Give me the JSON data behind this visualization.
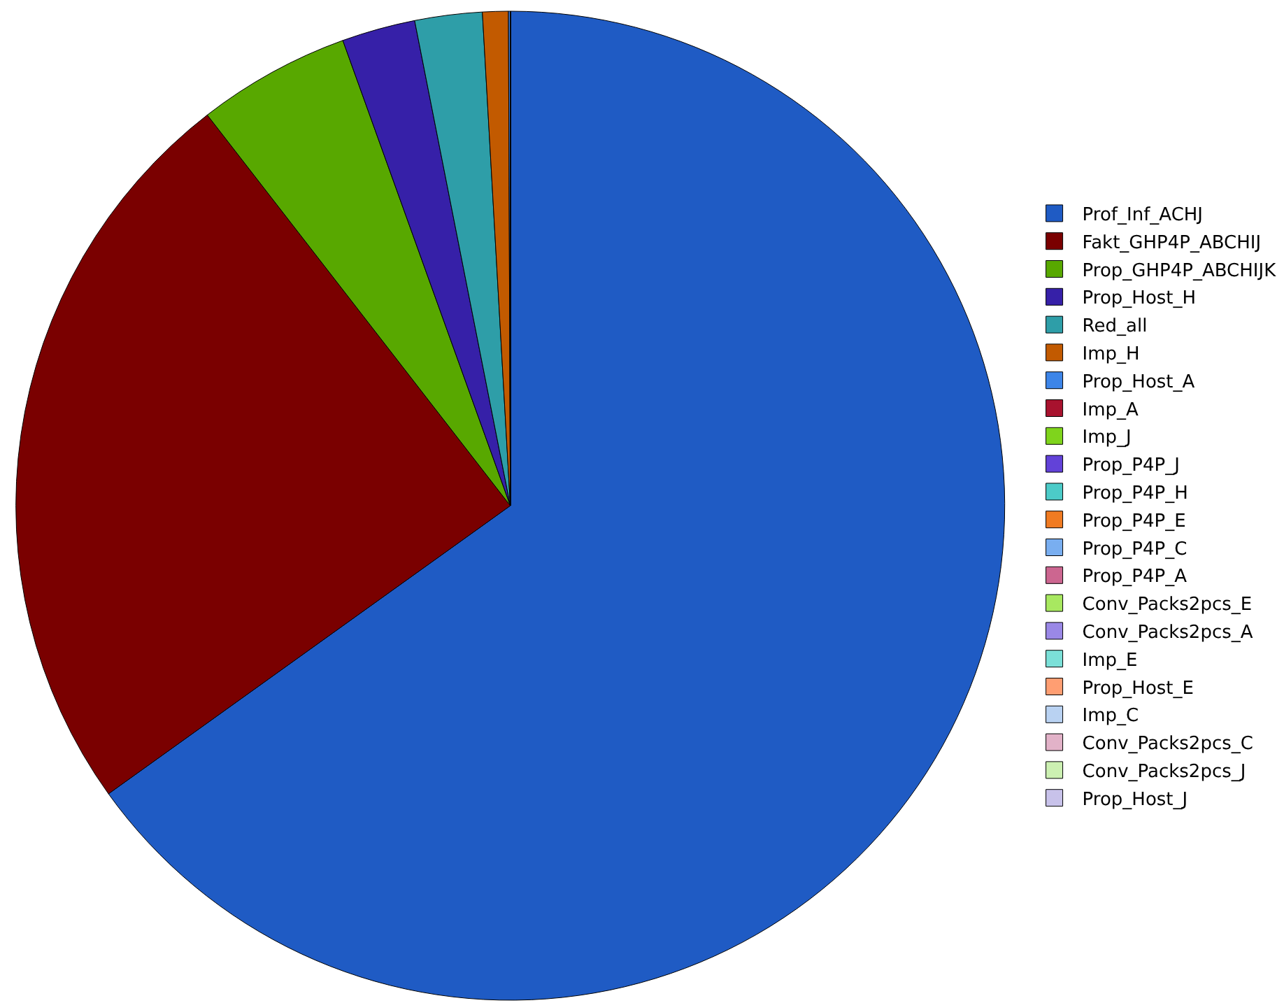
{
  "chart_data": {
    "type": "pie",
    "categories": [
      "Prof_Inf_ACHJ",
      "Fakt_GHP4P_ABCHIJ",
      "Prop_GHP4P_ABCHIJK",
      "Prop_Host_H",
      "Red_all",
      "Imp_H",
      "Prop_Host_A",
      "Imp_A",
      "Imp_J",
      "Prop_P4P_J",
      "Prop_P4P_H",
      "Prop_P4P_E",
      "Prop_P4P_C",
      "Prop_P4P_A",
      "Conv_Packs2pcs_E",
      "Conv_Packs2pcs_A",
      "Imp_E",
      "Prop_Host_E",
      "Imp_C",
      "Conv_Packs2pcs_C",
      "Conv_Packs2pcs_J",
      "Prop_Host_J"
    ],
    "values": [
      65.1,
      24.4,
      5.0,
      2.4,
      2.2,
      0.84,
      0.06,
      0,
      0,
      0,
      0,
      0,
      0,
      0,
      0,
      0,
      0,
      0,
      0,
      0,
      0,
      0
    ],
    "colors": [
      "#1f5bc4",
      "#7a0000",
      "#58a800",
      "#3620a8",
      "#2e9ea8",
      "#c25a00",
      "#3d85e8",
      "#a8122e",
      "#7fd41c",
      "#6242d8",
      "#4ccbc8",
      "#f07b22",
      "#79aef0",
      "#cc6690",
      "#a8e860",
      "#9a88e6",
      "#7be0d8",
      "#ff9e72",
      "#b9d2f2",
      "#e2b2c8",
      "#ccf0b2",
      "#c8c2ea"
    ],
    "legend": "right"
  }
}
